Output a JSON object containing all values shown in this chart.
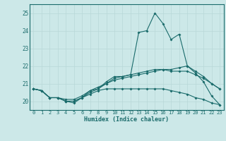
{
  "xlabel": "Humidex (Indice chaleur)",
  "ylabel": "",
  "xlim": [
    -0.5,
    23.5
  ],
  "ylim": [
    19.5,
    25.5
  ],
  "background_color": "#cce8e8",
  "line_color": "#1a6b6b",
  "grid_color": "#b8d8d8",
  "xticks": [
    0,
    1,
    2,
    3,
    4,
    5,
    6,
    7,
    8,
    9,
    10,
    11,
    12,
    13,
    14,
    15,
    16,
    17,
    18,
    19,
    20,
    21,
    22,
    23
  ],
  "yticks": [
    20,
    21,
    22,
    23,
    24,
    25
  ],
  "lines": [
    [
      20.7,
      20.6,
      20.2,
      20.2,
      20.0,
      19.9,
      20.2,
      20.6,
      20.7,
      21.1,
      21.4,
      21.4,
      21.5,
      23.9,
      24.0,
      25.0,
      24.4,
      23.5,
      23.8,
      22.0,
      21.6,
      21.1,
      20.3,
      19.8
    ],
    [
      20.7,
      20.6,
      20.2,
      20.2,
      20.1,
      20.1,
      20.3,
      20.6,
      20.8,
      21.0,
      21.2,
      21.3,
      21.4,
      21.5,
      21.6,
      21.7,
      21.8,
      21.8,
      21.9,
      22.0,
      21.7,
      21.4,
      21.0,
      20.7
    ],
    [
      20.7,
      20.6,
      20.2,
      20.2,
      20.0,
      20.0,
      20.2,
      20.4,
      20.6,
      20.7,
      20.7,
      20.7,
      20.7,
      20.7,
      20.7,
      20.7,
      20.7,
      20.6,
      20.5,
      20.4,
      20.2,
      20.1,
      19.9,
      19.8
    ],
    [
      20.7,
      20.6,
      20.2,
      20.2,
      20.0,
      20.0,
      20.2,
      20.5,
      20.7,
      21.0,
      21.3,
      21.4,
      21.5,
      21.6,
      21.7,
      21.8,
      21.8,
      21.7,
      21.7,
      21.7,
      21.5,
      21.3,
      21.0,
      20.7
    ]
  ]
}
